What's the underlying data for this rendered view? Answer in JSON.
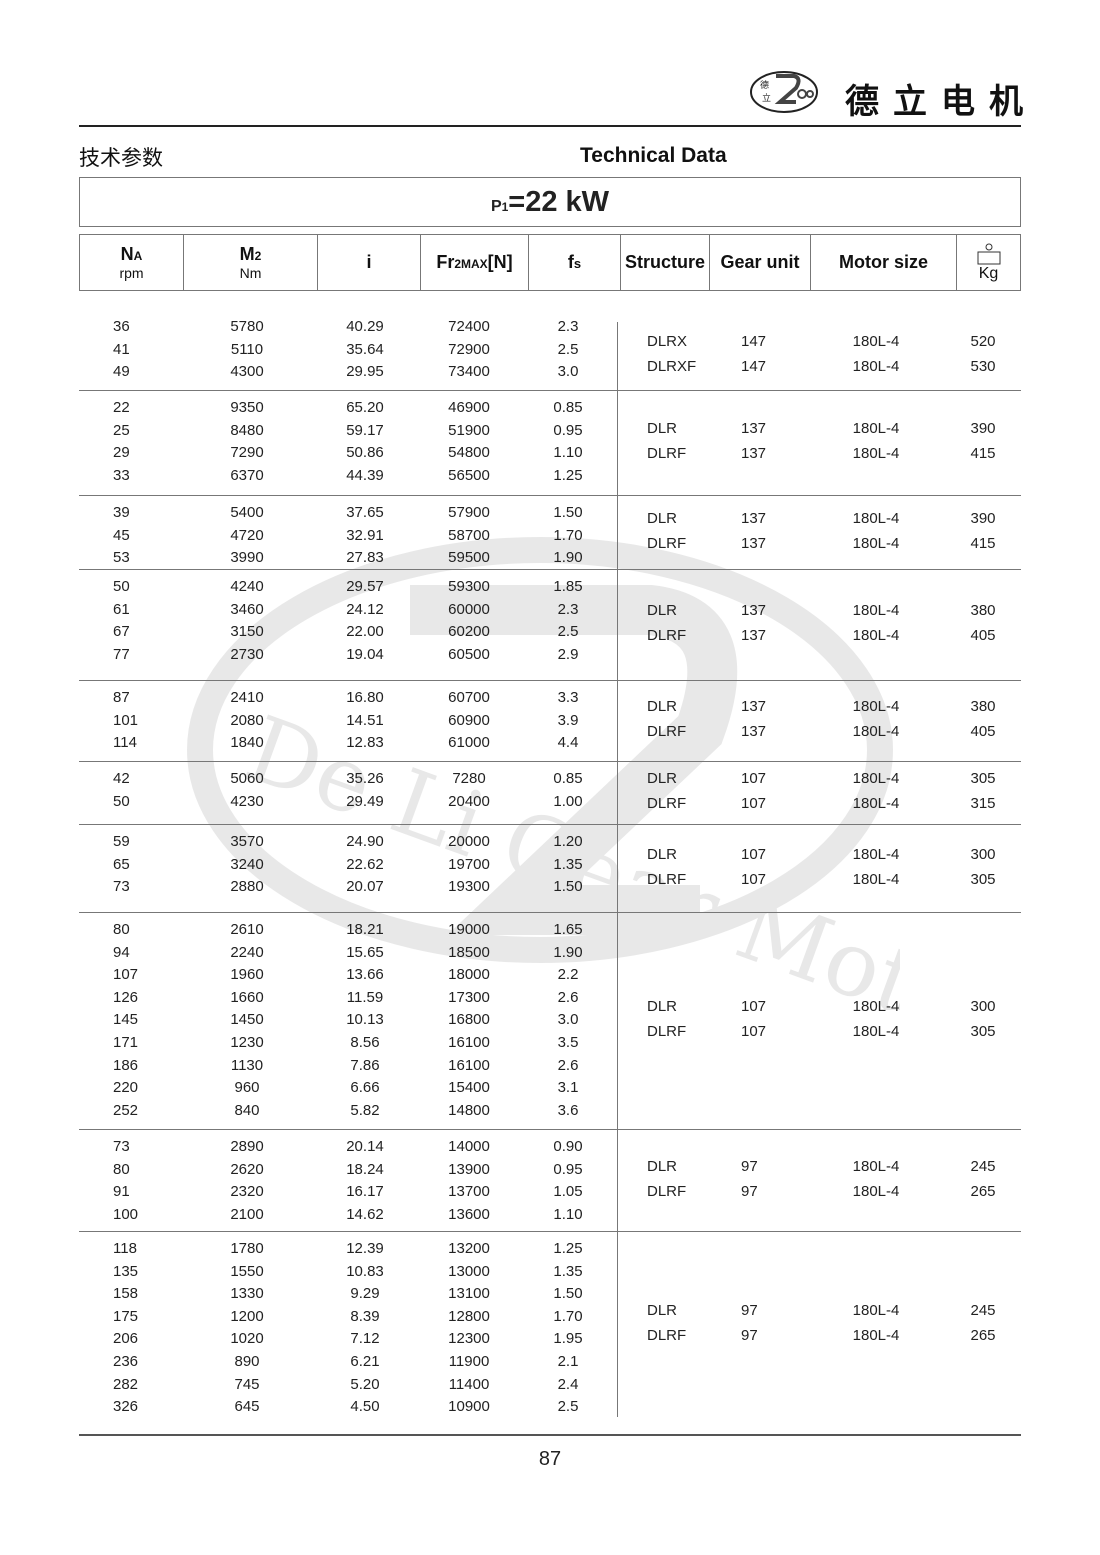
{
  "header": {
    "brand_cn": "德立电机",
    "logo_text": "De Li Gear Motor",
    "logo_chars": "德立",
    "title_cn": "技术参数",
    "title_en": "Technical Data",
    "power_prefix": "P",
    "power_sub": "1",
    "power_value": "=22 kW"
  },
  "columns": {
    "na": {
      "main": "N",
      "sub": "A",
      "unit": "rpm"
    },
    "m2": {
      "main": "M",
      "sub": "2",
      "unit": "Nm"
    },
    "i": {
      "main": "i"
    },
    "fr": {
      "main": "Fr",
      "sub": "2MAX",
      "tail": "[N]"
    },
    "fs": {
      "main": "f",
      "sub": "s"
    },
    "structure": "Structure",
    "gear_unit": "Gear unit",
    "motor_size": "Motor size",
    "weight_unit": "Kg",
    "weight_icon": "weight-icon"
  },
  "groups": [
    {
      "rows": [
        [
          "36",
          "5780",
          "40.29",
          "72400",
          "2.3"
        ],
        [
          "41",
          "5110",
          "35.64",
          "72900",
          "2.5"
        ],
        [
          "49",
          "4300",
          "29.95",
          "73400",
          "3.0"
        ]
      ],
      "models": [
        [
          "DLRX",
          "147",
          "180L-4",
          "520"
        ],
        [
          "DLRXF",
          "147",
          "180L-4",
          "530"
        ]
      ]
    },
    {
      "rows": [
        [
          "22",
          "9350",
          "65.20",
          "46900",
          "0.85"
        ],
        [
          "25",
          "8480",
          "59.17",
          "51900",
          "0.95"
        ],
        [
          "29",
          "7290",
          "50.86",
          "54800",
          "1.10"
        ],
        [
          "33",
          "6370",
          "44.39",
          "56500",
          "1.25"
        ]
      ],
      "models": [
        [
          "DLR",
          "137",
          "180L-4",
          "390"
        ],
        [
          "DLRF",
          "137",
          "180L-4",
          "415"
        ]
      ]
    },
    {
      "rows": [
        [
          "39",
          "5400",
          "37.65",
          "57900",
          "1.50"
        ],
        [
          "45",
          "4720",
          "32.91",
          "58700",
          "1.70"
        ],
        [
          "53",
          "3990",
          "27.83",
          "59500",
          "1.90"
        ]
      ],
      "models": [
        [
          "DLR",
          "137",
          "180L-4",
          "390"
        ],
        [
          "DLRF",
          "137",
          "180L-4",
          "415"
        ]
      ]
    },
    {
      "rows": [
        [
          "50",
          "4240",
          "29.57",
          "59300",
          "1.85"
        ],
        [
          "61",
          "3460",
          "24.12",
          "60000",
          "2.3"
        ],
        [
          "67",
          "3150",
          "22.00",
          "60200",
          "2.5"
        ],
        [
          "77",
          "2730",
          "19.04",
          "60500",
          "2.9"
        ]
      ],
      "models": [
        [
          "DLR",
          "137",
          "180L-4",
          "380"
        ],
        [
          "DLRF",
          "137",
          "180L-4",
          "405"
        ]
      ]
    },
    {
      "rows": [
        [
          "87",
          "2410",
          "16.80",
          "60700",
          "3.3"
        ],
        [
          "101",
          "2080",
          "14.51",
          "60900",
          "3.9"
        ],
        [
          "114",
          "1840",
          "12.83",
          "61000",
          "4.4"
        ]
      ],
      "models": [
        [
          "DLR",
          "137",
          "180L-4",
          "380"
        ],
        [
          "DLRF",
          "137",
          "180L-4",
          "405"
        ]
      ]
    },
    {
      "rows": [
        [
          "42",
          "5060",
          "35.26",
          "7280",
          "0.85"
        ],
        [
          "50",
          "4230",
          "29.49",
          "20400",
          "1.00"
        ]
      ],
      "models": [
        [
          "DLR",
          "107",
          "180L-4",
          "305"
        ],
        [
          "DLRF",
          "107",
          "180L-4",
          "315"
        ]
      ]
    },
    {
      "rows": [
        [
          "59",
          "3570",
          "24.90",
          "20000",
          "1.20"
        ],
        [
          "65",
          "3240",
          "22.62",
          "19700",
          "1.35"
        ],
        [
          "73",
          "2880",
          "20.07",
          "19300",
          "1.50"
        ]
      ],
      "models": [
        [
          "DLR",
          "107",
          "180L-4",
          "300"
        ],
        [
          "DLRF",
          "107",
          "180L-4",
          "305"
        ]
      ]
    },
    {
      "rows": [
        [
          "80",
          "2610",
          "18.21",
          "19000",
          "1.65"
        ],
        [
          "94",
          "2240",
          "15.65",
          "18500",
          "1.90"
        ],
        [
          "107",
          "1960",
          "13.66",
          "18000",
          "2.2"
        ],
        [
          "126",
          "1660",
          "11.59",
          "17300",
          "2.6"
        ],
        [
          "145",
          "1450",
          "10.13",
          "16800",
          "3.0"
        ],
        [
          "171",
          "1230",
          "8.56",
          "16100",
          "3.5"
        ],
        [
          "186",
          "1130",
          "7.86",
          "16100",
          "2.6"
        ],
        [
          "220",
          "960",
          "6.66",
          "15400",
          "3.1"
        ],
        [
          "252",
          "840",
          "5.82",
          "14800",
          "3.6"
        ]
      ],
      "models": [
        [
          "DLR",
          "107",
          "180L-4",
          "300"
        ],
        [
          "DLRF",
          "107",
          "180L-4",
          "305"
        ]
      ]
    },
    {
      "rows": [
        [
          "73",
          "2890",
          "20.14",
          "14000",
          "0.90"
        ],
        [
          "80",
          "2620",
          "18.24",
          "13900",
          "0.95"
        ],
        [
          "91",
          "2320",
          "16.17",
          "13700",
          "1.05"
        ],
        [
          "100",
          "2100",
          "14.62",
          "13600",
          "1.10"
        ]
      ],
      "models": [
        [
          "DLR",
          "97",
          "180L-4",
          "245"
        ],
        [
          "DLRF",
          "97",
          "180L-4",
          "265"
        ]
      ]
    },
    {
      "rows": [
        [
          "118",
          "1780",
          "12.39",
          "13200",
          "1.25"
        ],
        [
          "135",
          "1550",
          "10.83",
          "13000",
          "1.35"
        ],
        [
          "158",
          "1330",
          "9.29",
          "13100",
          "1.50"
        ],
        [
          "175",
          "1200",
          "8.39",
          "12800",
          "1.70"
        ],
        [
          "206",
          "1020",
          "7.12",
          "12300",
          "1.95"
        ],
        [
          "236",
          "890",
          "6.21",
          "11900",
          "2.1"
        ],
        [
          "282",
          "745",
          "5.20",
          "11400",
          "2.4"
        ],
        [
          "326",
          "645",
          "4.50",
          "10900",
          "2.5"
        ]
      ],
      "models": [
        [
          "DLR",
          "97",
          "180L-4",
          "245"
        ],
        [
          "DLRF",
          "97",
          "180L-4",
          "265"
        ]
      ]
    }
  ],
  "watermark_text": "De Li Gear Motor",
  "page_number": "87"
}
